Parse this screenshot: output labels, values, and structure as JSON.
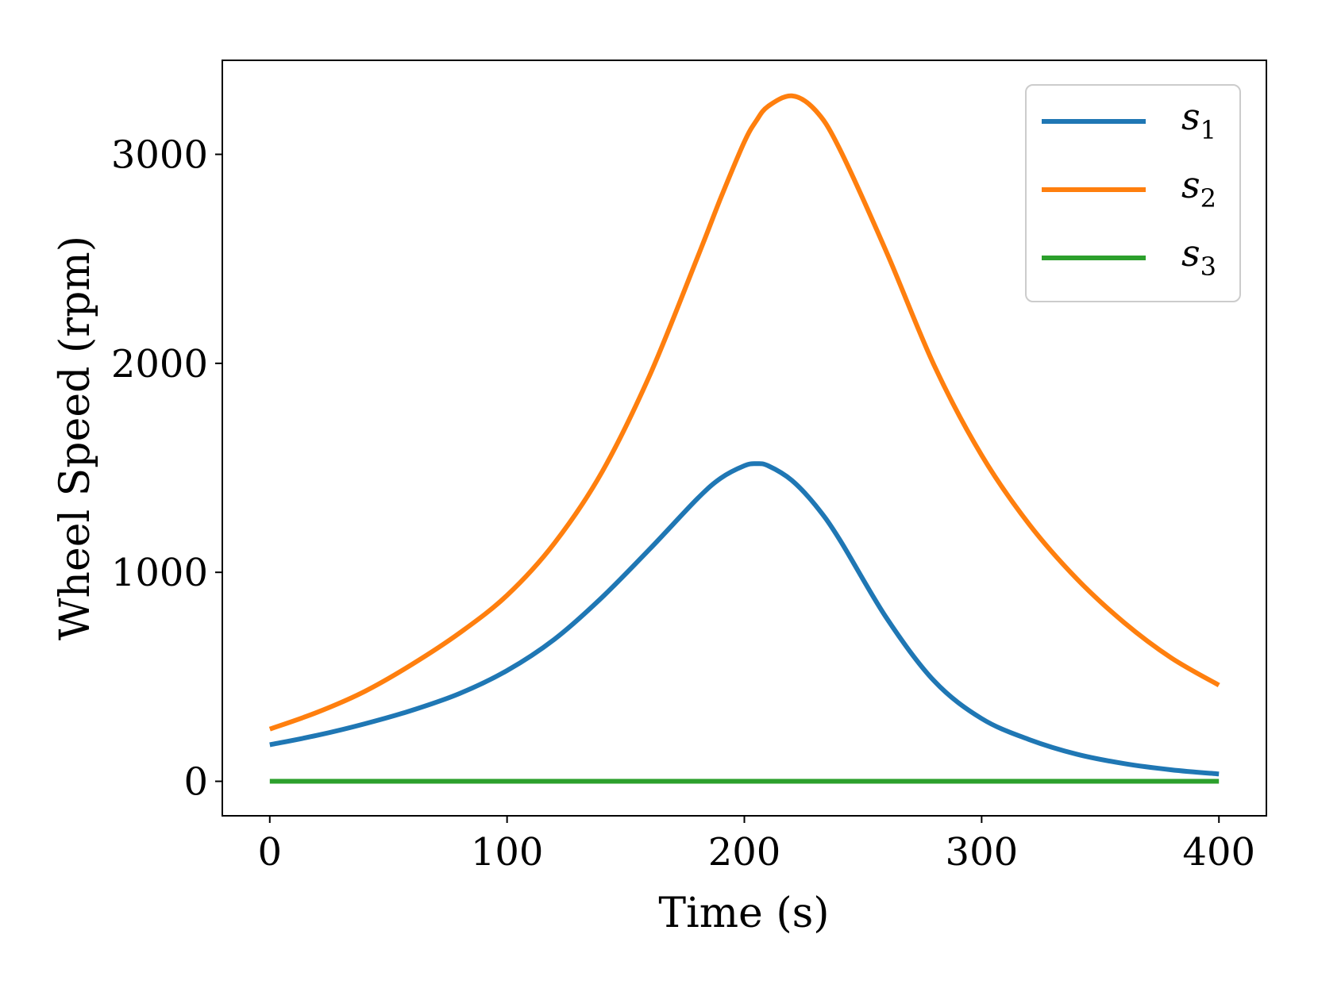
{
  "chart_data": {
    "type": "line",
    "title": "",
    "xlabel": "Time (s)",
    "ylabel": "Wheel Speed (rpm)",
    "xlim": [
      -20,
      420
    ],
    "ylim": [
      -165,
      3450
    ],
    "xticks": [
      0,
      100,
      200,
      300,
      400
    ],
    "yticks": [
      0,
      1000,
      2000,
      3000
    ],
    "x": [
      0,
      20,
      40,
      60,
      80,
      100,
      120,
      140,
      160,
      180,
      190,
      200,
      205,
      210,
      220,
      230,
      240,
      260,
      280,
      300,
      320,
      340,
      360,
      380,
      400
    ],
    "series": [
      {
        "name": "s",
        "subscript": "1",
        "color": "#1f77b4",
        "values": [
          175,
          220,
          275,
          340,
          420,
          530,
          680,
          880,
          1110,
          1350,
          1450,
          1510,
          1520,
          1510,
          1440,
          1320,
          1160,
          780,
          480,
          300,
          200,
          130,
          85,
          55,
          35
        ]
      },
      {
        "name": "s",
        "subscript": "2",
        "color": "#ff7f0e",
        "values": [
          250,
          330,
          430,
          560,
          710,
          890,
          1140,
          1480,
          1940,
          2500,
          2790,
          3060,
          3160,
          3230,
          3280,
          3210,
          3030,
          2530,
          1990,
          1560,
          1230,
          970,
          760,
          590,
          460
        ]
      },
      {
        "name": "s",
        "subscript": "3",
        "color": "#2ca02c",
        "values": [
          0,
          0,
          0,
          0,
          0,
          0,
          0,
          0,
          0,
          0,
          0,
          0,
          0,
          0,
          0,
          0,
          0,
          0,
          0,
          0,
          0,
          0,
          0,
          0,
          0
        ]
      }
    ],
    "legend_position": "top-right",
    "grid": false
  }
}
